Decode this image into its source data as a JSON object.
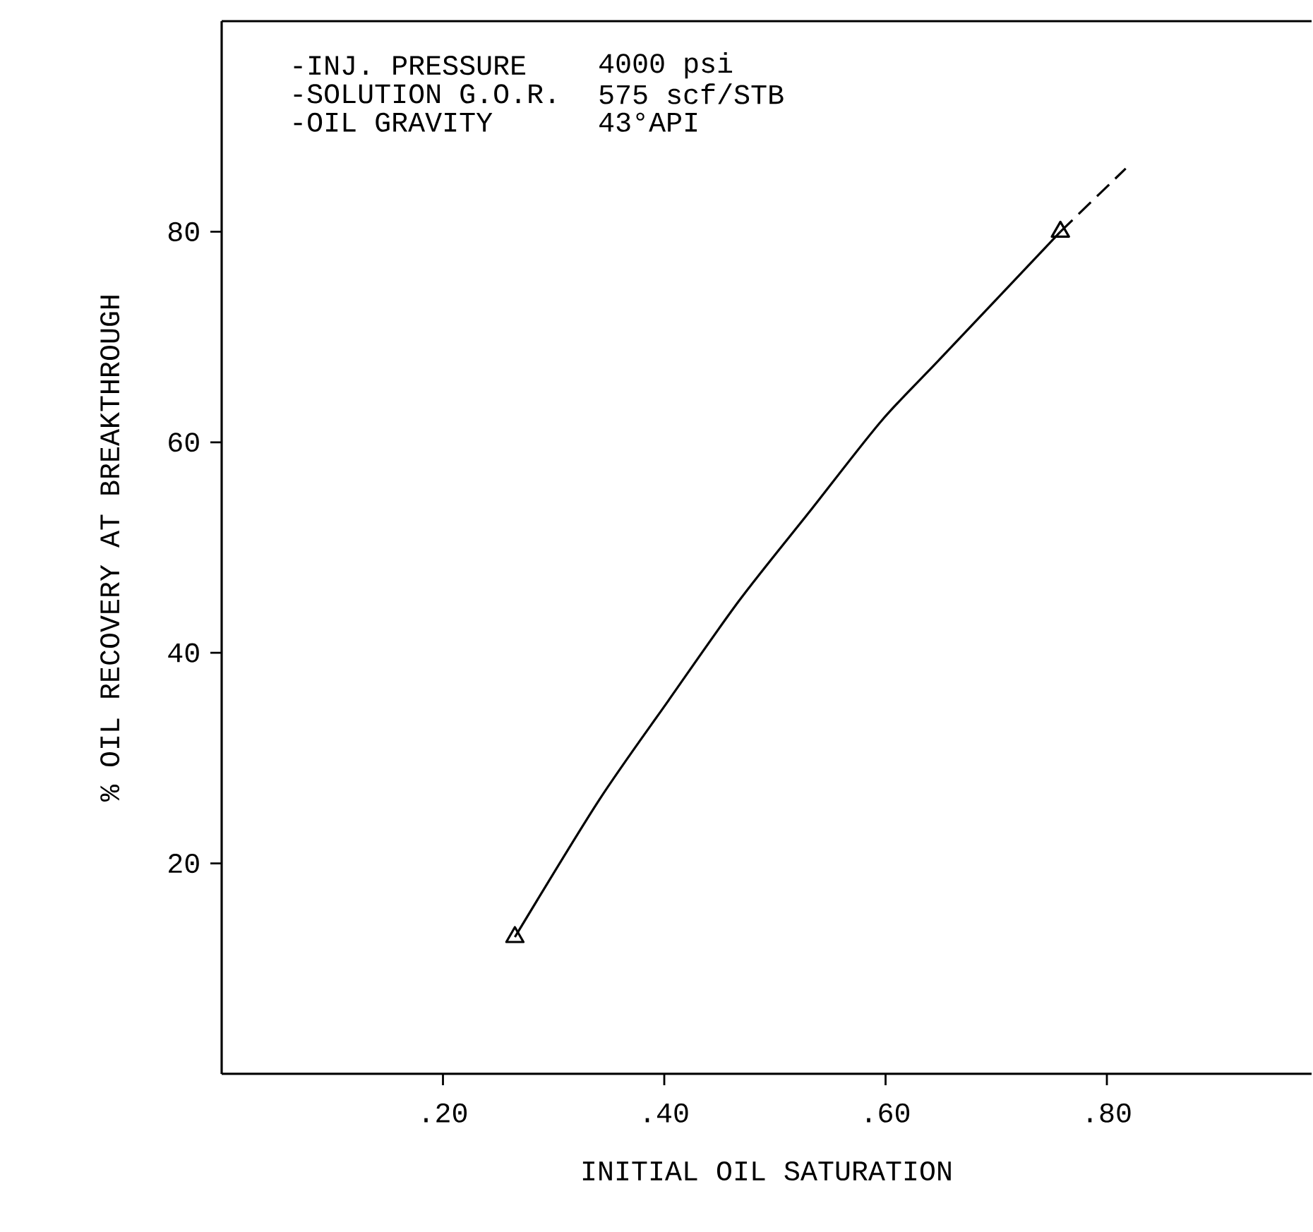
{
  "chart_data": {
    "type": "line",
    "xlabel": "INITIAL OIL SATURATION",
    "ylabel": "% OIL RECOVERY AT BREAKTHROUGH",
    "annotations": [
      "-INJ. PRESSURE",
      "4000 psi",
      "-SOLUTION G.O.R.",
      "575 scf/STB",
      "-OIL GRAVITY",
      "43°API"
    ],
    "xlim": [
      0,
      0.985
    ],
    "ylim": [
      0,
      100
    ],
    "xticks": [
      {
        "value": 0.2,
        "label": ".20"
      },
      {
        "value": 0.4,
        "label": ".40"
      },
      {
        "value": 0.6,
        "label": ".60"
      },
      {
        "value": 0.8,
        "label": ".80"
      }
    ],
    "yticks": [
      20,
      40,
      60,
      80
    ],
    "grid": false,
    "series": [
      {
        "color": "#000000",
        "x": [
          0.265,
          0.341,
          0.404,
          0.468,
          0.532,
          0.596,
          0.65,
          0.758
        ],
        "values": [
          13,
          26,
          35.5,
          45,
          53.5,
          62,
          68,
          80
        ],
        "marker": "none",
        "line_style": "solid"
      },
      {
        "color": "#000000",
        "x": [
          0.758,
          0.817
        ],
        "values": [
          80,
          86
        ],
        "marker": "none",
        "line_style": "dashed"
      },
      {
        "type": "scatter",
        "color": "#000000",
        "x": [
          0.265,
          0.758
        ],
        "values": [
          13,
          80
        ],
        "marker": "triangle"
      }
    ]
  }
}
